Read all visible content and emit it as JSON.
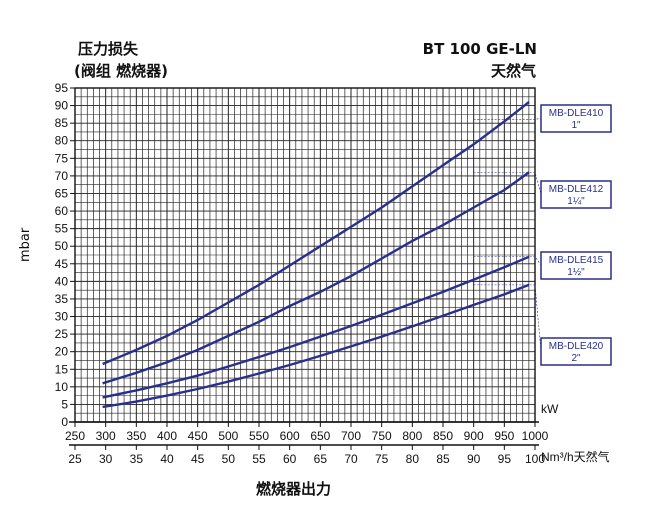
{
  "header": {
    "left_line1": "压力损失",
    "left_line2": "(阀组  燃烧器)",
    "right_line1": "BT 100 GE-LN",
    "right_line2": "天然气"
  },
  "chart_data": {
    "type": "line",
    "title": "",
    "ylabel": "mbar",
    "xlabel": "燃烧器出力",
    "x_unit_primary": "kW",
    "x_unit_secondary": "Nm³/h天然气",
    "xlim": [
      250,
      1000
    ],
    "ylim": [
      0,
      95
    ],
    "x_ticks": [
      250,
      300,
      350,
      400,
      450,
      500,
      550,
      600,
      650,
      700,
      750,
      800,
      850,
      900,
      950,
      1000
    ],
    "x2_ticks": [
      25,
      30,
      35,
      40,
      45,
      50,
      55,
      60,
      65,
      70,
      75,
      80,
      85,
      90,
      95,
      100
    ],
    "y_ticks": [
      0,
      5,
      10,
      15,
      20,
      25,
      30,
      35,
      40,
      45,
      50,
      55,
      60,
      65,
      70,
      75,
      80,
      85,
      90,
      95
    ],
    "grid": true,
    "series": [
      {
        "name": "MB-DLE410 1\"",
        "label_line1": "MB-DLE410",
        "label_line2": "1\"",
        "x": [
          295,
          350,
          400,
          450,
          500,
          550,
          600,
          650,
          700,
          750,
          800,
          850,
          900,
          950,
          990
        ],
        "y": [
          16.5,
          20.5,
          24.5,
          29,
          34,
          39,
          44.5,
          50,
          55.5,
          61,
          67,
          73,
          79,
          85.5,
          91
        ]
      },
      {
        "name": "MB-DLE412 1¼\"",
        "label_line1": "MB-DLE412",
        "label_line2": "1¼\"",
        "x": [
          295,
          350,
          400,
          450,
          500,
          550,
          600,
          650,
          700,
          750,
          800,
          850,
          900,
          950,
          990
        ],
        "y": [
          11,
          14,
          17,
          20.5,
          24.5,
          28.5,
          33,
          37,
          41.5,
          46.5,
          51.5,
          56,
          61,
          66,
          71
        ]
      },
      {
        "name": "MB-DLE415 1½\"",
        "label_line1": "MB-DLE415",
        "label_line2": "1½\"",
        "x": [
          295,
          350,
          400,
          450,
          500,
          550,
          600,
          650,
          700,
          750,
          800,
          850,
          900,
          950,
          990
        ],
        "y": [
          7,
          9,
          11,
          13.2,
          15.8,
          18.5,
          21.3,
          24.3,
          27.3,
          30.5,
          33.8,
          37,
          40.5,
          44,
          47
        ]
      },
      {
        "name": "MB-DLE420 2\"",
        "label_line1": "MB-DLE420",
        "label_line2": "2\"",
        "x": [
          295,
          350,
          400,
          450,
          500,
          550,
          600,
          650,
          700,
          750,
          800,
          850,
          900,
          950,
          990
        ],
        "y": [
          4.3,
          5.8,
          7.5,
          9.4,
          11.5,
          13.8,
          16.2,
          18.8,
          21.5,
          24.3,
          27.2,
          30.2,
          33.3,
          36.3,
          39
        ]
      }
    ]
  }
}
